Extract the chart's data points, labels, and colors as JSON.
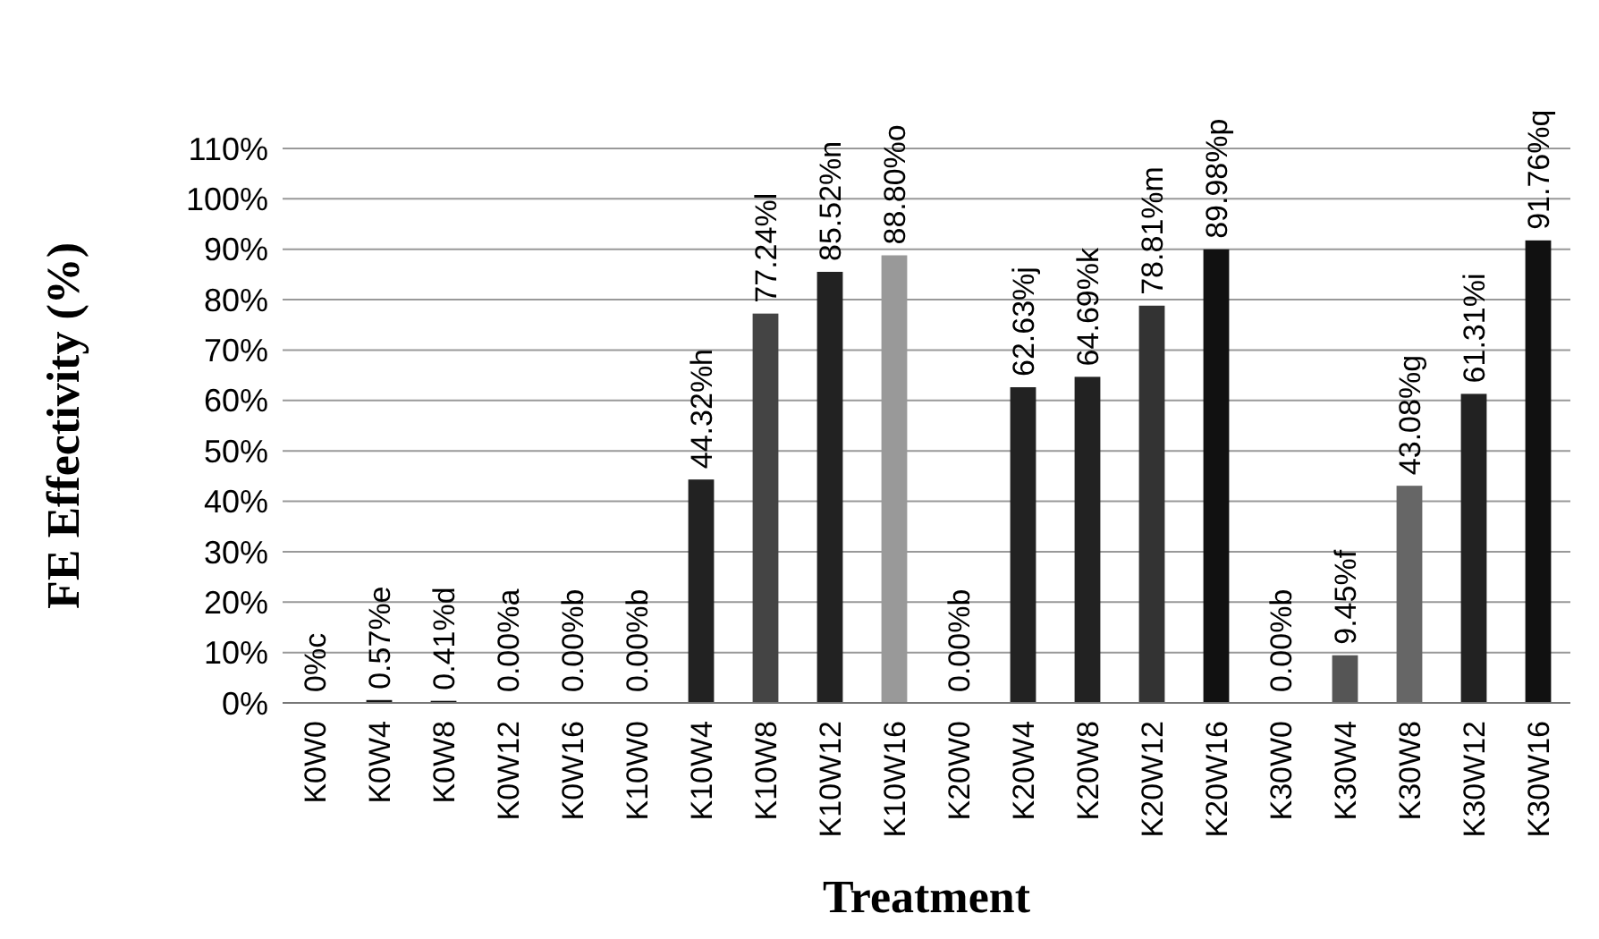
{
  "chart_data": {
    "type": "bar",
    "xlabel": "Treatment",
    "ylabel": "FE Effectivity (%)",
    "categories": [
      "K0W0",
      "K0W4",
      "K0W8",
      "K0W12",
      "K0W16",
      "K10W0",
      "K10W4",
      "K10W8",
      "K10W12",
      "K10W16",
      "K20W0",
      "K20W4",
      "K20W8",
      "K20W12",
      "K20W16",
      "K30W0",
      "K30W4",
      "K30W8",
      "K30W12",
      "K30W16"
    ],
    "values": [
      0,
      0.57,
      0.41,
      0,
      0,
      0,
      44.32,
      77.24,
      85.52,
      88.8,
      0,
      62.63,
      64.69,
      78.81,
      89.98,
      0,
      9.45,
      43.08,
      61.31,
      91.76
    ],
    "value_labels": [
      "0%c",
      "0.57%e",
      "0.41%d",
      "0.00%a",
      "0.00%b",
      "0.00%b",
      "44.32%h",
      "77.24%l",
      "85.52%n",
      "88.80%o",
      "0.00%b",
      "62.63%j",
      "64.69%k",
      "78.81%m",
      "89.98%p",
      "0.00%b",
      "9.45%f",
      "43.08%g",
      "61.31%i",
      "91.76%q"
    ],
    "colors": [
      "#111111",
      "#111111",
      "#111111",
      "#111111",
      "#111111",
      "#111111",
      "#222222",
      "#444444",
      "#222222",
      "#999999",
      "#111111",
      "#222222",
      "#222222",
      "#333333",
      "#111111",
      "#111111",
      "#555555",
      "#666666",
      "#222222",
      "#111111"
    ],
    "ylim": [
      0,
      110
    ],
    "yticks": [
      {
        "value": 0,
        "label": "0%"
      },
      {
        "value": 10,
        "label": "10%"
      },
      {
        "value": 20,
        "label": "20%"
      },
      {
        "value": 30,
        "label": "30%"
      },
      {
        "value": 40,
        "label": "40%"
      },
      {
        "value": 50,
        "label": "50%"
      },
      {
        "value": 60,
        "label": "60%"
      },
      {
        "value": 70,
        "label": "70%"
      },
      {
        "value": 80,
        "label": "80%"
      },
      {
        "value": 90,
        "label": "90%"
      },
      {
        "value": 100,
        "label": "100%"
      },
      {
        "value": 110,
        "label": "110%"
      }
    ],
    "grid": "y"
  }
}
